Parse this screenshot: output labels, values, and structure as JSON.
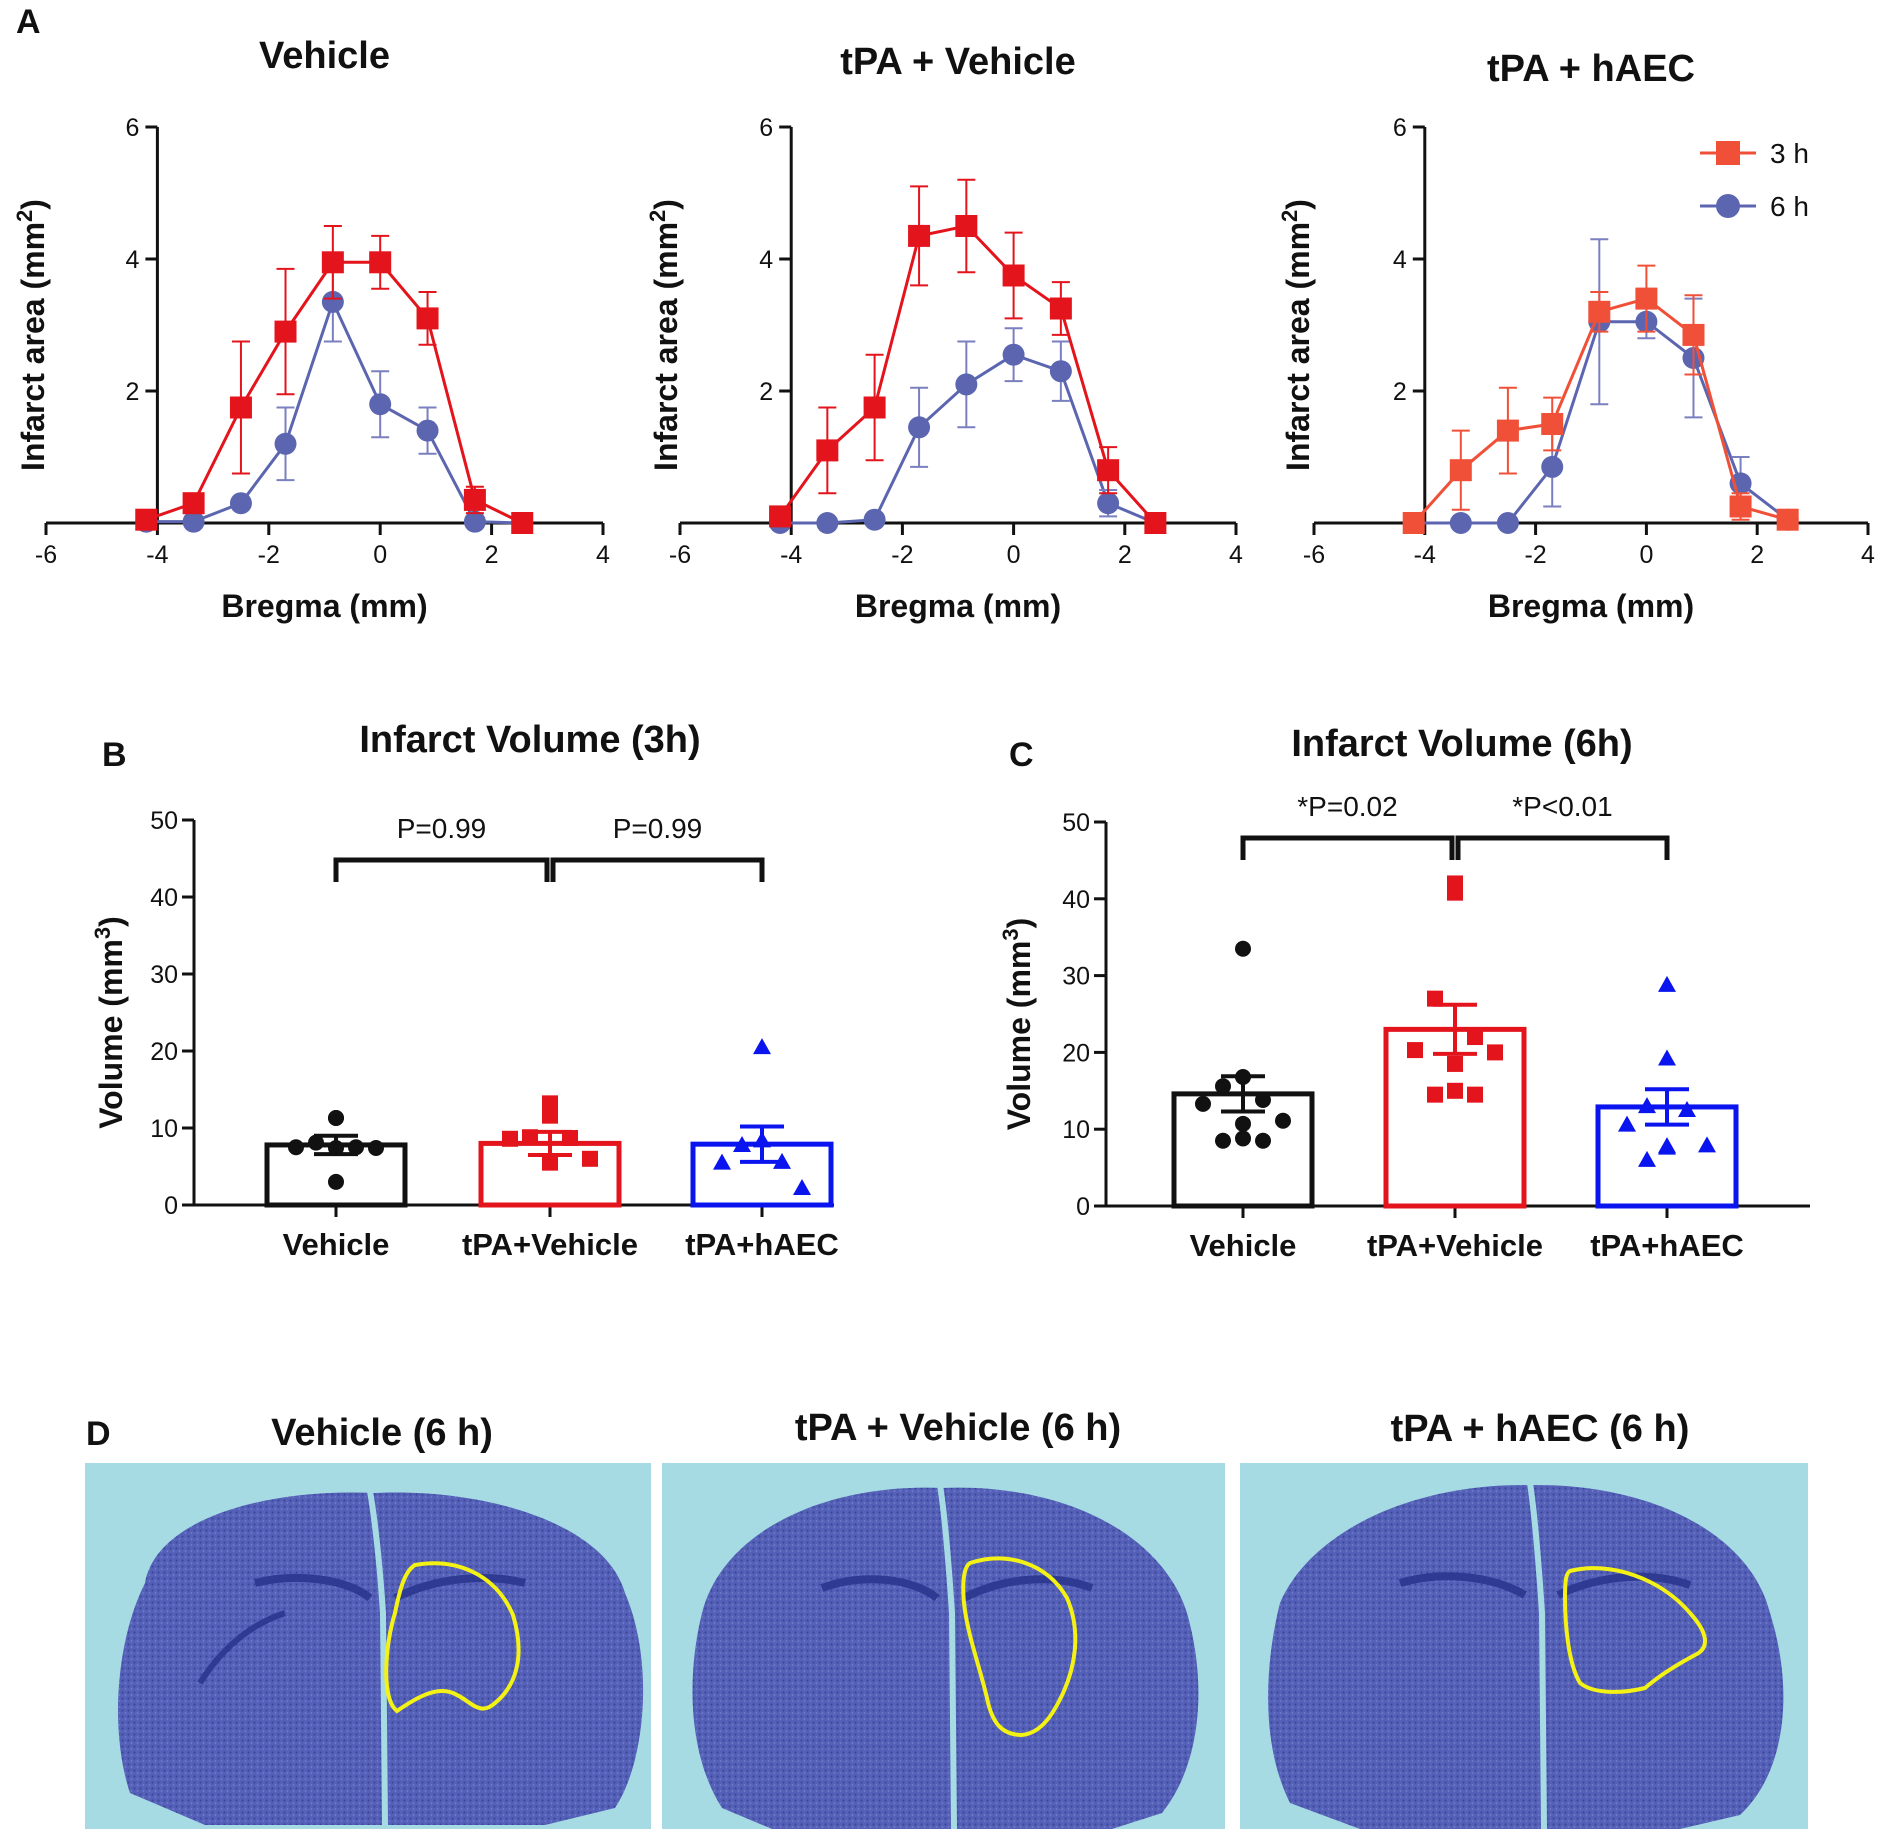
{
  "colors": {
    "red": "#e3141c",
    "redLight": "#f05038",
    "blue": "#5c66b0",
    "black": "#111111",
    "pureBlue": "#0a14ee",
    "errorLight": "#7a7fbf",
    "tissue": "#4e5cb6",
    "tissueDark": "#2f3a92",
    "tissueBg": "#a8dce6",
    "outline": "#f4f214"
  },
  "panel_labels": {
    "a": "A",
    "b": "B",
    "c": "C",
    "d": "D"
  },
  "legend": {
    "h3": "3 h",
    "h6": "6 h"
  },
  "chart_data": [
    {
      "id": "A1",
      "type": "line",
      "title": "Vehicle",
      "xlabel": "Bregma (mm)",
      "ylabel": "Infarct area (mm²)",
      "ylabel_main": "Infarct area (mm",
      "ylabel_sup": "2",
      "ylabel_close": ")",
      "xlim": [
        -6,
        4
      ],
      "ylim": [
        0,
        6
      ],
      "xticks": [
        "-6",
        "-4",
        "-2",
        "0",
        "2",
        "4"
      ],
      "yticks": [
        "2",
        "4",
        "6"
      ],
      "x": [
        -4.2,
        -3.35,
        -2.5,
        -1.7,
        -0.85,
        0,
        0.85,
        1.7,
        2.55
      ],
      "series": [
        {
          "name": "3 h",
          "values": [
            0.05,
            0.3,
            1.75,
            2.9,
            3.95,
            3.95,
            3.1,
            0.35,
            0.0
          ],
          "err": [
            0,
            0.1,
            1.0,
            0.95,
            0.55,
            0.4,
            0.4,
            0.2,
            0
          ]
        },
        {
          "name": "6 h",
          "values": [
            0.02,
            0.02,
            0.3,
            1.2,
            3.35,
            1.8,
            1.4,
            0.02,
            0
          ],
          "err": [
            0,
            0,
            0,
            0.55,
            0.6,
            0.5,
            0.35,
            0,
            0
          ]
        }
      ]
    },
    {
      "id": "A2",
      "type": "line",
      "title": "tPA + Vehicle",
      "xlabel": "Bregma (mm)",
      "ylabel": "Infarct area (mm²)",
      "ylabel_main": "Infarct area (mm",
      "ylabel_sup": "2",
      "ylabel_close": ")",
      "xlim": [
        -6,
        4
      ],
      "ylim": [
        0,
        6
      ],
      "xticks": [
        "-6",
        "-4",
        "-2",
        "0",
        "2",
        "4"
      ],
      "yticks": [
        "2",
        "4",
        "6"
      ],
      "x": [
        -4.2,
        -3.35,
        -2.5,
        -1.7,
        -0.85,
        0,
        0.85,
        1.7,
        2.55
      ],
      "series": [
        {
          "name": "3 h",
          "values": [
            0.1,
            1.1,
            1.75,
            4.35,
            4.5,
            3.75,
            3.25,
            0.8,
            0.0
          ],
          "err": [
            0,
            0.65,
            0.8,
            0.75,
            0.7,
            0.65,
            0.4,
            0.35,
            0
          ]
        },
        {
          "name": "6 h",
          "values": [
            0.0,
            0.0,
            0.05,
            1.45,
            2.1,
            2.55,
            2.3,
            0.3,
            0.0
          ],
          "err": [
            0,
            0,
            0,
            0.6,
            0.65,
            0.4,
            0.45,
            0.2,
            0
          ]
        }
      ]
    },
    {
      "id": "A3",
      "type": "line",
      "title": "tPA + hAEC",
      "xlabel": "Bregma (mm)",
      "ylabel": "Infarct area (mm²)",
      "ylabel_main": "Infarct area (mm",
      "ylabel_sup": "2",
      "ylabel_close": ")",
      "xlim": [
        -6,
        4
      ],
      "ylim": [
        0,
        6
      ],
      "xticks": [
        "-6",
        "-4",
        "-2",
        "0",
        "2",
        "4"
      ],
      "yticks": [
        "2",
        "4",
        "6"
      ],
      "x": [
        -4.2,
        -3.35,
        -2.5,
        -1.7,
        -0.85,
        0,
        0.85,
        1.7,
        2.55
      ],
      "series": [
        {
          "name": "3 h",
          "values": [
            0.0,
            0.8,
            1.4,
            1.5,
            3.2,
            3.4,
            2.85,
            0.25,
            0.05
          ],
          "err": [
            0,
            0.6,
            0.65,
            0.4,
            0.3,
            0.5,
            0.6,
            0.2,
            0
          ]
        },
        {
          "name": "6 h",
          "values": [
            0.0,
            0.0,
            0.0,
            0.85,
            3.05,
            3.05,
            2.5,
            0.6,
            0.05
          ],
          "err": [
            0,
            0,
            0,
            0.6,
            1.25,
            0.25,
            0.9,
            0.4,
            0
          ]
        }
      ]
    },
    {
      "id": "B",
      "type": "bar",
      "title": "Infarct Volume (3h)",
      "ylabel": "Volume (mm³)",
      "ylabel_main": "Volume (mm",
      "ylabel_sup": "3",
      "ylabel_close": ")",
      "ylim": [
        0,
        50
      ],
      "yticks": [
        "0",
        "10",
        "20",
        "30",
        "40",
        "50"
      ],
      "categories": [
        "Vehicle",
        "tPA+Vehicle",
        "tPA+hAEC"
      ],
      "values": [
        7.8,
        8.0,
        7.9
      ],
      "sem": [
        1.2,
        1.5,
        2.3
      ],
      "points": [
        [
          11.3,
          11.3,
          8.1,
          7.5,
          7.5,
          7.4,
          7.4,
          3.0
        ],
        [
          13.2,
          11.6,
          8.8,
          8.7,
          8.6,
          6.0,
          5.5
        ],
        [
          20.5,
          8.4,
          7.8,
          5.6,
          5.5,
          2.2
        ]
      ],
      "comparisons": [
        {
          "from": 0,
          "to": 1,
          "label": "P=0.99"
        },
        {
          "from": 1,
          "to": 2,
          "label": "P=0.99"
        }
      ]
    },
    {
      "id": "C",
      "type": "bar",
      "title": "Infarct Volume (6h)",
      "ylabel": "Volume (mm³)",
      "ylabel_main": "Volume (mm",
      "ylabel_sup": "3",
      "ylabel_close": ")",
      "ylim": [
        0,
        50
      ],
      "yticks": [
        "0",
        "10",
        "20",
        "30",
        "40",
        "50"
      ],
      "categories": [
        "Vehicle",
        "tPA+Vehicle",
        "tPA+hAEC"
      ],
      "values": [
        14.6,
        23.0,
        12.9
      ],
      "sem": [
        2.3,
        3.2,
        2.3
      ],
      "points": [
        [
          33.5,
          16.8,
          15.6,
          13.8,
          13.3,
          11.1,
          10.7,
          8.8,
          8.5,
          8.5
        ],
        [
          42.0,
          40.8,
          27.0,
          22.0,
          20.3,
          20.0,
          18.5,
          15.0,
          14.5,
          14.5
        ],
        [
          28.8,
          19.2,
          13.0,
          12.5,
          10.6,
          7.9,
          7.8,
          7.6,
          6.0
        ]
      ],
      "comparisons": [
        {
          "from": 0,
          "to": 1,
          "label": "*P=0.02"
        },
        {
          "from": 1,
          "to": 2,
          "label": "*P<0.01"
        }
      ]
    }
  ],
  "histology": {
    "titles": [
      "Vehicle (6 h)",
      "tPA + Vehicle (6 h)",
      "tPA + hAEC (6 h)"
    ]
  }
}
